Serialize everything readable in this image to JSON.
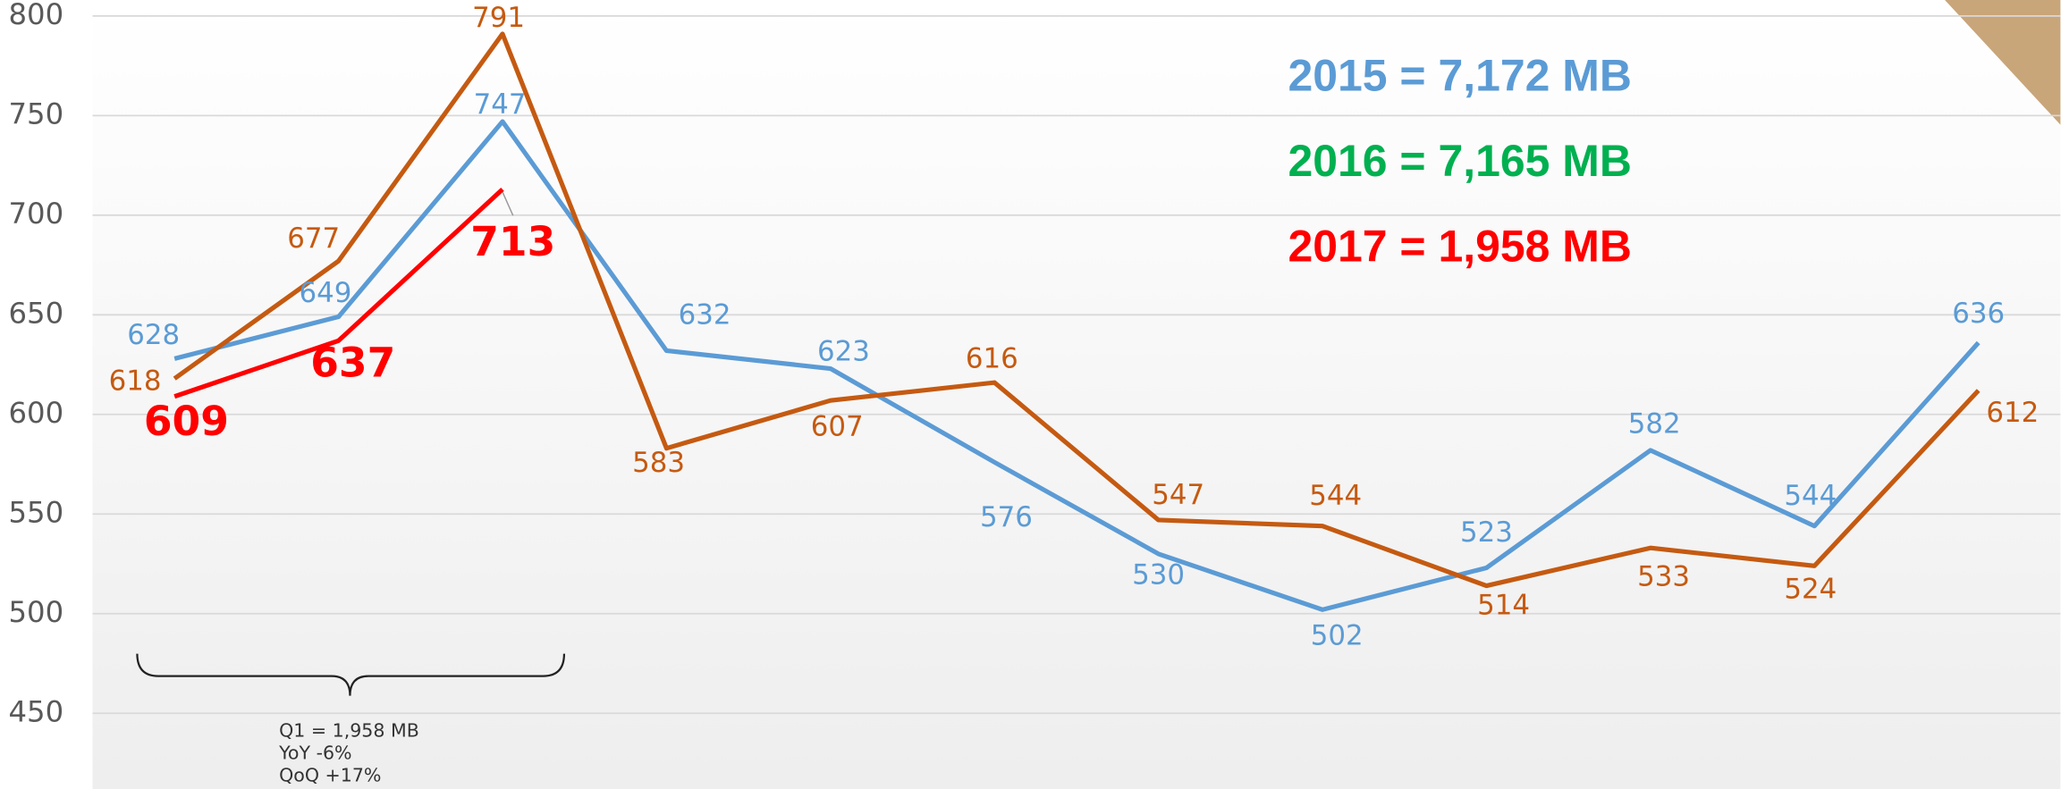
{
  "chart_data": {
    "type": "line",
    "categories": [
      null,
      null,
      null,
      null,
      null,
      null,
      null,
      null,
      null,
      null,
      null,
      null
    ],
    "series": [
      {
        "color": "#5b9bd5",
        "values": [
          628,
          649,
          747,
          632,
          623,
          576,
          530,
          502,
          523,
          582,
          544,
          636
        ]
      },
      {
        "color": "#c55a11",
        "values": [
          618,
          677,
          791,
          583,
          607,
          616,
          547,
          544,
          514,
          533,
          524,
          612
        ]
      },
      {
        "color": "#ff0000",
        "values": [
          609,
          637,
          713,
          null,
          null,
          null,
          null,
          null,
          null,
          null,
          null,
          null
        ]
      }
    ],
    "ylim": [
      412,
      808
    ],
    "yticks": [
      450,
      500,
      550,
      600,
      650,
      700,
      750,
      800
    ],
    "grid": true,
    "notes": [
      {
        "text": "2015 = 7,172 MB",
        "color": "#5b9bd5"
      },
      {
        "text": "2016 = 7,165 MB",
        "color": "#00b050"
      },
      {
        "text": "2017 = 1,958 MB",
        "color": "#ff0000"
      }
    ],
    "brace_notes": [
      "Q1 = 1,958 MB",
      "YoY    -6%",
      "QoQ +17%"
    ]
  }
}
